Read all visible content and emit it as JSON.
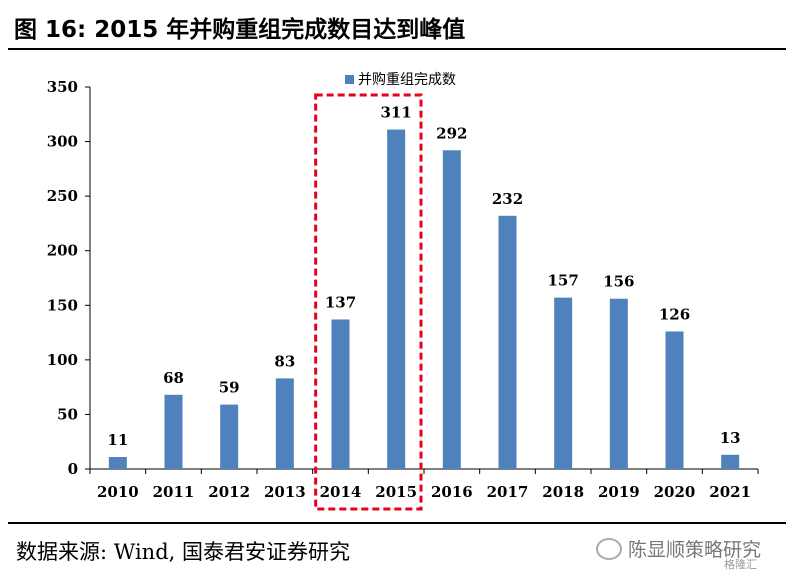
{
  "figure": {
    "title": "图 16:  2015 年并购重组完成数目达到峰值",
    "source": "数据来源:  Wind,  国泰君安证券研究",
    "watermark": "陈显顺策略研究",
    "watermark_sub": "格隆汇",
    "highlight_color": "#e8001c"
  },
  "chart_data": {
    "type": "bar",
    "categories": [
      "2010",
      "2011",
      "2012",
      "2013",
      "2014",
      "2015",
      "2016",
      "2017",
      "2018",
      "2019",
      "2020",
      "2021"
    ],
    "series": [
      {
        "name": "并购重组完成数",
        "values": [
          11,
          68,
          59,
          83,
          137,
          311,
          292,
          232,
          157,
          156,
          126,
          13
        ],
        "color": "#4f81bd"
      }
    ],
    "ylim": [
      0,
      350
    ],
    "yticks": [
      0,
      50,
      100,
      150,
      200,
      250,
      300,
      350
    ],
    "grid": false,
    "legend": "top-center",
    "highlight_categories": [
      "2014",
      "2015"
    ],
    "data_labels": true
  }
}
